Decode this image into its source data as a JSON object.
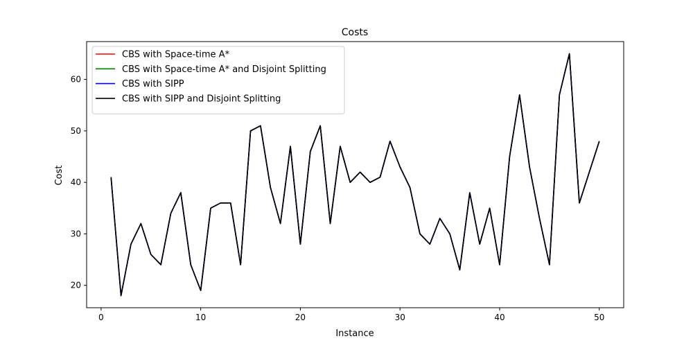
{
  "chart_data": {
    "type": "line",
    "title": "Costs",
    "xlabel": "Instance",
    "ylabel": "Cost",
    "xlim": [
      -1.45,
      52.45
    ],
    "ylim": [
      15.65,
      67.35
    ],
    "xticks": [
      0,
      10,
      20,
      30,
      40,
      50
    ],
    "yticks": [
      20,
      30,
      40,
      50,
      60
    ],
    "grid": false,
    "legend_position": "upper-left",
    "x": [
      1,
      2,
      3,
      4,
      5,
      6,
      7,
      8,
      9,
      10,
      11,
      12,
      13,
      14,
      15,
      16,
      17,
      18,
      19,
      20,
      21,
      22,
      23,
      24,
      25,
      26,
      27,
      28,
      29,
      30,
      31,
      32,
      33,
      34,
      35,
      36,
      37,
      38,
      39,
      40,
      41,
      42,
      43,
      44,
      45,
      46,
      47,
      48,
      49,
      50
    ],
    "series": [
      {
        "name": "CBS with Space-time A*",
        "color": "#ff0000",
        "values": [
          41,
          18,
          28,
          32,
          26,
          24,
          34,
          38,
          24,
          19,
          35,
          36,
          36,
          24,
          50,
          51,
          39,
          32,
          47,
          28,
          46,
          51,
          32,
          47,
          40,
          42,
          40,
          41,
          48,
          43,
          39,
          30,
          28,
          33,
          30,
          23,
          38,
          28,
          35,
          24,
          45,
          57,
          43,
          33,
          24,
          57,
          65,
          36,
          42,
          48
        ]
      },
      {
        "name": "CBS with Space-time A* and Disjoint Splitting",
        "color": "#008000",
        "values": [
          41,
          18,
          28,
          32,
          26,
          24,
          34,
          38,
          24,
          19,
          35,
          36,
          36,
          24,
          50,
          51,
          39,
          32,
          47,
          28,
          46,
          51,
          32,
          47,
          40,
          42,
          40,
          41,
          48,
          43,
          39,
          30,
          28,
          33,
          30,
          23,
          38,
          28,
          35,
          24,
          45,
          57,
          43,
          33,
          24,
          57,
          65,
          36,
          42,
          48
        ]
      },
      {
        "name": "CBS with SIPP",
        "color": "#0000ff",
        "values": [
          41,
          18,
          28,
          32,
          26,
          24,
          34,
          38,
          24,
          19,
          35,
          36,
          36,
          24,
          50,
          51,
          39,
          32,
          47,
          28,
          46,
          51,
          32,
          47,
          40,
          42,
          40,
          41,
          48,
          43,
          39,
          30,
          28,
          33,
          30,
          23,
          38,
          28,
          35,
          24,
          45,
          57,
          43,
          33,
          24,
          57,
          65,
          36,
          42,
          48
        ]
      },
      {
        "name": "CBS with SIPP and Disjoint Splitting",
        "color": "#000000",
        "values": [
          41,
          18,
          28,
          32,
          26,
          24,
          34,
          38,
          24,
          19,
          35,
          36,
          36,
          24,
          50,
          51,
          39,
          32,
          47,
          28,
          46,
          51,
          32,
          47,
          40,
          42,
          40,
          41,
          48,
          43,
          39,
          30,
          28,
          33,
          30,
          23,
          38,
          28,
          35,
          24,
          45,
          57,
          43,
          33,
          24,
          57,
          65,
          36,
          42,
          48
        ]
      }
    ]
  }
}
